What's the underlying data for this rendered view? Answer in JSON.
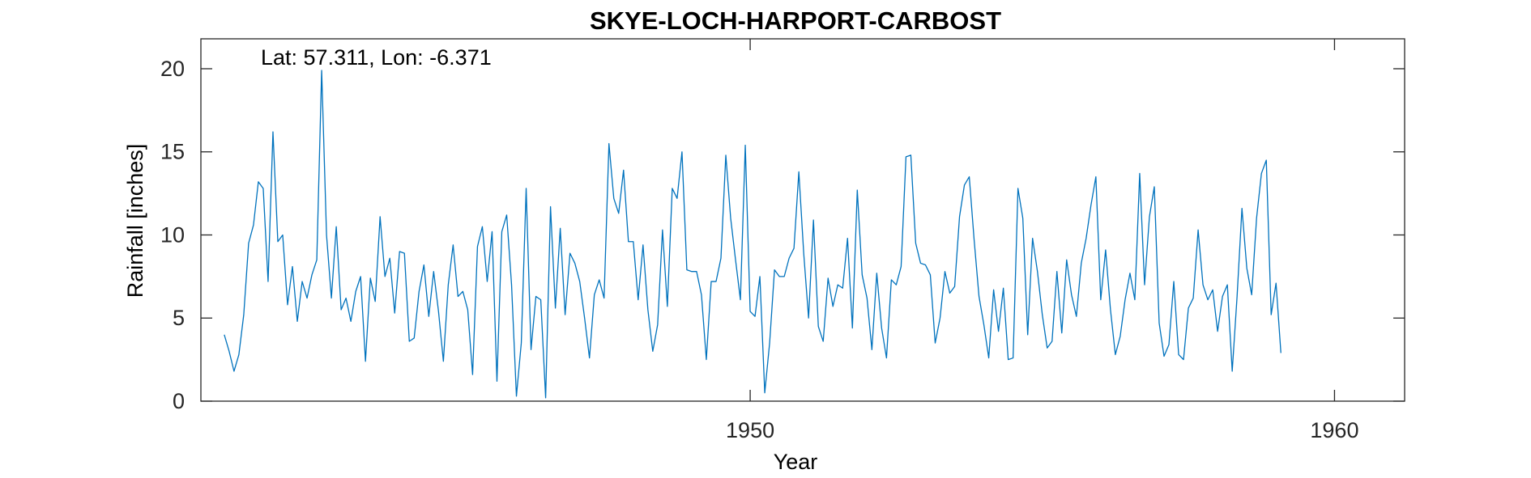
{
  "chart_data": {
    "type": "line",
    "title": "SKYE-LOCH-HARPORT-CARBOST",
    "annotation": "Lat: 57.311, Lon: -6.371",
    "xlabel": "Year",
    "ylabel": "Rainfall [inches]",
    "xlim": [
      1940.6,
      1961.2
    ],
    "ylim": [
      0,
      21.8
    ],
    "x_ticks": [
      1950,
      1960
    ],
    "x_tick_labels": [
      "1950",
      "1960"
    ],
    "y_ticks": [
      0,
      5,
      10,
      15,
      20
    ],
    "y_tick_labels": [
      "0",
      "5",
      "10",
      "15",
      "20"
    ],
    "grid": false,
    "legend": false,
    "start_year": 1941,
    "step_years": 0.08333,
    "series": [
      {
        "color": "#0072BD",
        "values": [
          4.0,
          3.0,
          1.8,
          2.8,
          5.2,
          9.5,
          10.6,
          13.2,
          12.8,
          7.2,
          16.2,
          9.6,
          10.0,
          5.8,
          8.1,
          4.8,
          7.2,
          6.2,
          7.6,
          8.5,
          19.9,
          10.0,
          6.2,
          10.5,
          5.5,
          6.2,
          4.8,
          6.6,
          7.5,
          2.4,
          7.4,
          6.0,
          11.1,
          7.5,
          8.6,
          5.3,
          9.0,
          8.9,
          3.6,
          3.8,
          6.6,
          8.2,
          5.1,
          7.8,
          5.4,
          2.4,
          7.0,
          9.4,
          6.3,
          6.6,
          5.5,
          1.6,
          9.3,
          10.5,
          7.2,
          10.2,
          1.2,
          10.2,
          11.2,
          7.0,
          0.3,
          3.5,
          12.8,
          3.1,
          6.3,
          6.1,
          0.2,
          11.7,
          5.6,
          10.4,
          5.2,
          8.9,
          8.3,
          7.2,
          5.0,
          2.6,
          6.4,
          7.3,
          6.2,
          15.5,
          12.2,
          11.3,
          13.9,
          9.6,
          9.6,
          6.1,
          9.4,
          5.5,
          3.0,
          4.6,
          10.3,
          5.7,
          12.8,
          12.2,
          15.0,
          7.9,
          7.8,
          7.8,
          6.4,
          2.5,
          7.2,
          7.2,
          8.6,
          14.8,
          11.0,
          8.5,
          6.1,
          15.4,
          5.4,
          5.1,
          7.5,
          0.5,
          3.5,
          7.9,
          7.5,
          7.5,
          8.6,
          9.2,
          13.8,
          8.9,
          5.0,
          10.9,
          4.5,
          3.6,
          7.4,
          5.7,
          7.0,
          6.8,
          9.8,
          4.4,
          12.7,
          7.6,
          6.2,
          3.1,
          7.7,
          4.4,
          2.6,
          7.3,
          7.0,
          8.1,
          14.7,
          14.8,
          9.5,
          8.3,
          8.2,
          7.6,
          3.5,
          5.0,
          7.8,
          6.5,
          6.9,
          11.1,
          13.0,
          13.5,
          9.7,
          6.3,
          4.6,
          2.6,
          6.7,
          4.2,
          6.8,
          2.5,
          2.6,
          12.8,
          11.0,
          4.0,
          9.8,
          7.8,
          5.2,
          3.2,
          3.6,
          7.8,
          4.1,
          8.5,
          6.4,
          5.1,
          8.3,
          9.8,
          11.8,
          13.5,
          6.1,
          9.1,
          5.5,
          2.8,
          3.9,
          6.1,
          7.7,
          6.1,
          13.7,
          7.0,
          11.1,
          12.9,
          4.7,
          2.7,
          3.4,
          7.2,
          2.8,
          2.5,
          5.6,
          6.2,
          10.3,
          7.0,
          6.1,
          6.7,
          4.2,
          6.3,
          7.0,
          1.8,
          6.3,
          11.6,
          8.0,
          6.4,
          11.0,
          13.7,
          14.5,
          5.2,
          7.1,
          2.9
        ]
      }
    ]
  }
}
